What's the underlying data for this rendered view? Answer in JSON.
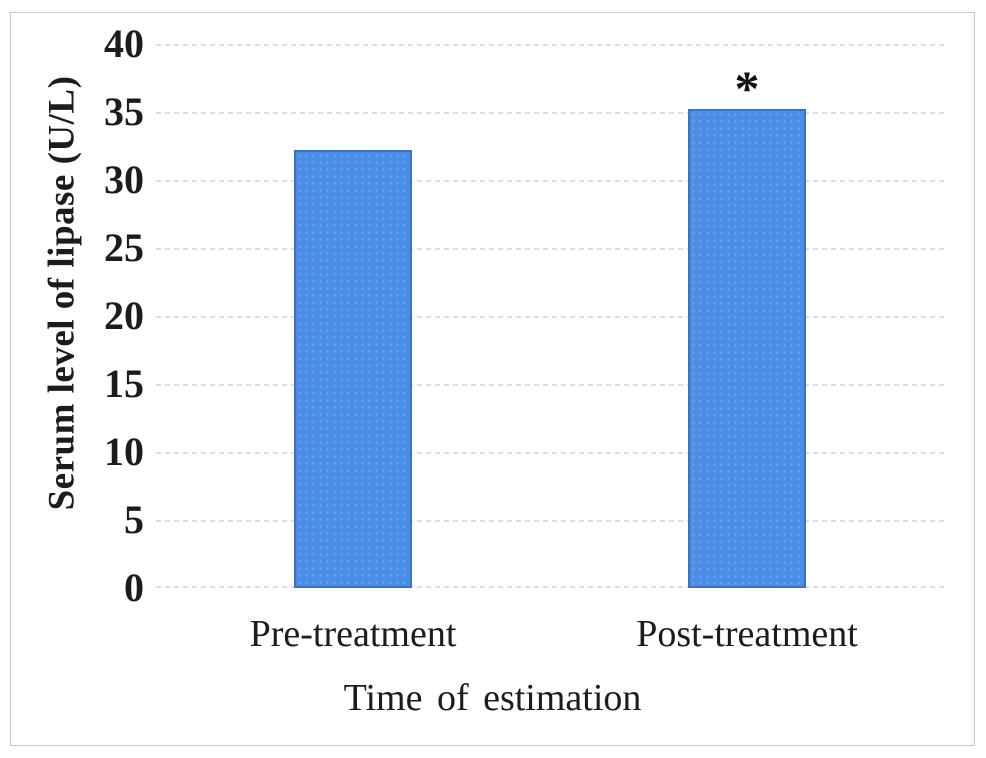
{
  "chart_data": {
    "type": "bar",
    "title": "",
    "categories": [
      "Pre-treatment",
      "Post-treatment"
    ],
    "values": [
      32.2,
      35.2
    ],
    "xlabel": "Time of estimation",
    "ylabel": "Serum level of lipase (U/L)",
    "ylim": [
      0,
      40
    ],
    "yticks": [
      0,
      5,
      10,
      15,
      20,
      25,
      30,
      35,
      40
    ],
    "grid": "horizontal-dotted",
    "legend": "none",
    "annotations": [
      {
        "category": "Post-treatment",
        "text": "*"
      }
    ],
    "colors": {
      "bar_fill": "#4a8ce6",
      "bar_border": "#3d74b8",
      "gridline": "#dcdfe1",
      "text": "#1c1c1c",
      "frame_border": "#c5c9cc",
      "background": "#ffffff"
    }
  }
}
